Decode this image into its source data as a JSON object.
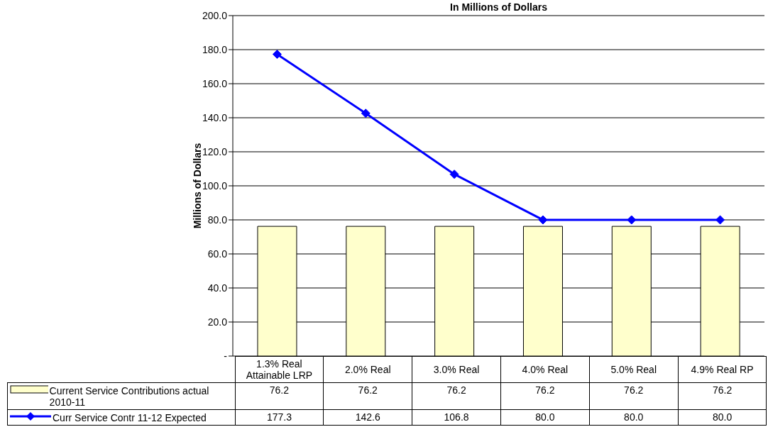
{
  "chart_data": {
    "type": "bar",
    "title": "In Millions of Dollars",
    "ylabel": "Millions of Dollars",
    "categories": [
      "1.3% Real Attainable LRP",
      "2.0% Real",
      "3.0% Real",
      "4.0% Real",
      "5.0% Real",
      "4.9% Real RP"
    ],
    "series": [
      {
        "name": "Current Service Contributions actual 2010-11",
        "color": "#ffffcc",
        "values": [
          76.2,
          76.2,
          76.2,
          76.2,
          76.2,
          76.2
        ],
        "value_labels": [
          "76.2",
          "76.2",
          "76.2",
          "76.2",
          "76.2",
          "76.2"
        ]
      },
      {
        "name": "Curr Service Contr 11-12 Expected",
        "type": "line",
        "color": "#0000ff",
        "values": [
          177.3,
          142.6,
          106.8,
          80,
          80,
          80
        ],
        "value_labels": [
          "177.3",
          "142.6",
          "106.8",
          "80.0",
          "80.0",
          "80.0"
        ],
        "marker": "diamond"
      }
    ],
    "ylim": [
      0,
      200
    ],
    "yticks": [
      {
        "value": 0,
        "label": "-"
      },
      {
        "value": 20,
        "label": "20.0"
      },
      {
        "value": 40,
        "label": "40.0"
      },
      {
        "value": 60,
        "label": "60.0"
      },
      {
        "value": 80,
        "label": "80.0"
      },
      {
        "value": 100,
        "label": "100.0"
      },
      {
        "value": 120,
        "label": "120.0"
      },
      {
        "value": 140,
        "label": "140.0"
      },
      {
        "value": 160,
        "label": "160.0"
      },
      {
        "value": 180,
        "label": "180.0"
      },
      {
        "value": 200,
        "label": "200.0"
      }
    ],
    "grid": "y",
    "legend": "bottom left"
  }
}
